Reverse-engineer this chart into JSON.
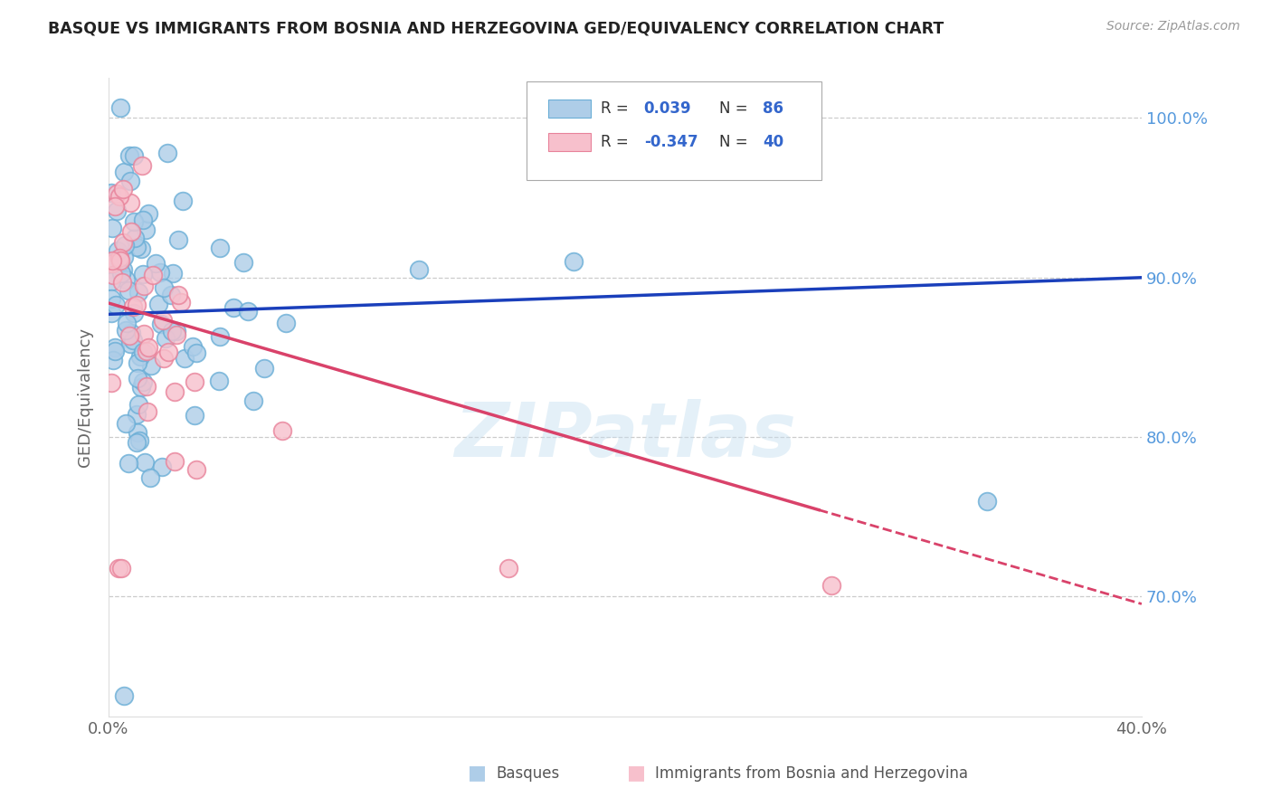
{
  "title": "BASQUE VS IMMIGRANTS FROM BOSNIA AND HERZEGOVINA GED/EQUIVALENCY CORRELATION CHART",
  "source": "Source: ZipAtlas.com",
  "ylabel": "GED/Equivalency",
  "xlim": [
    0.0,
    0.4
  ],
  "ylim": [
    0.625,
    1.025
  ],
  "blue_R": 0.039,
  "blue_N": 86,
  "pink_R": -0.347,
  "pink_N": 40,
  "blue_color": "#aecde8",
  "blue_edge": "#6aaed6",
  "pink_color": "#f7c0cc",
  "pink_edge": "#e8829a",
  "blue_line_color": "#1a3fbb",
  "pink_line_color": "#d9426a",
  "watermark": "ZIPatlas",
  "legend_label_blue": "Basques",
  "legend_label_pink": "Immigrants from Bosnia and Herzegovina",
  "yticks_right": [
    0.7,
    0.8,
    0.9,
    1.0
  ],
  "ytick_labels_right": [
    "70.0%",
    "80.0%",
    "90.0%",
    "100.0%"
  ]
}
